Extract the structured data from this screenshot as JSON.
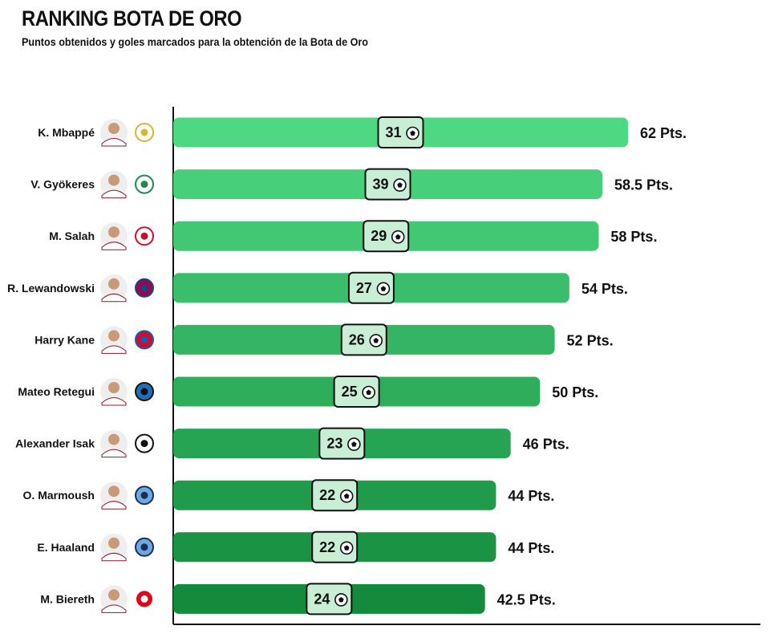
{
  "header": {
    "title": "RANKING BOTA DE ORO",
    "subtitle": "Puntos obtenidos y goles marcados para la obtención de la Bota de Oro"
  },
  "colors": {
    "bar_light": "#4fd882",
    "bar_dark": "#138a3c",
    "goal_box_fill": "#c8eed6",
    "axis": "#111111"
  },
  "chart_data": {
    "type": "bar",
    "orientation": "horizontal",
    "title": "RANKING BOTA DE ORO",
    "subtitle": "Puntos obtenidos y goles marcados para la obtención de la Bota de Oro",
    "categories": [
      "K. Mbappé",
      "V. Gyökeres",
      "M. Salah",
      "R. Lewandowski",
      "Harry Kane",
      "Mateo Retegui",
      "Alexander Isak",
      "O. Marmoush",
      "E. Haaland",
      "M. Biereth"
    ],
    "series": [
      {
        "values": [
          62,
          58.5,
          58,
          54,
          52,
          50,
          46,
          44,
          44,
          42.5
        ]
      }
    ],
    "value_labels": [
      "62 Pts.",
      "58.5 Pts.",
      "58 Pts.",
      "54 Pts.",
      "52 Pts.",
      "50 Pts.",
      "46 Pts.",
      "44 Pts.",
      "44 Pts.",
      "42.5 Pts."
    ],
    "goals": [
      31,
      39,
      29,
      27,
      26,
      25,
      23,
      22,
      22,
      24
    ],
    "goal_icon": "soccer-ball-icon",
    "club_icons": [
      "real-madrid-crest-icon",
      "sporting-cp-crest-icon",
      "liverpool-crest-icon",
      "barcelona-crest-icon",
      "bayern-crest-icon",
      "atalanta-crest-icon",
      "newcastle-crest-icon",
      "manchester-city-crest-icon",
      "manchester-city-crest-icon",
      "monaco-crest-icon"
    ],
    "player_icon": "player-photo-icon",
    "xlim": [
      0,
      62
    ],
    "grid": false,
    "legend": "none"
  }
}
